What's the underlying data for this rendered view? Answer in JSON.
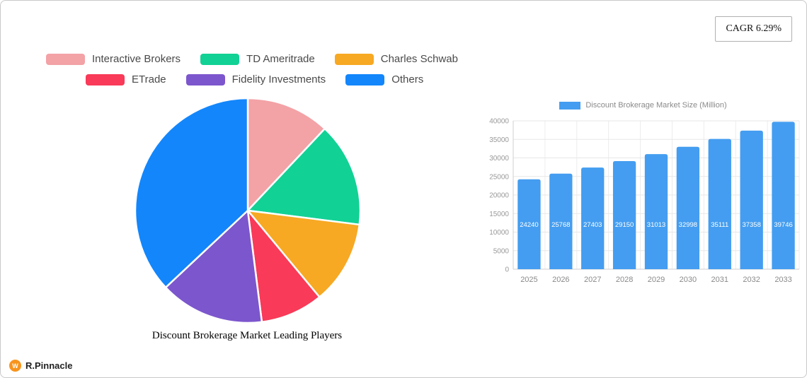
{
  "cagr_badge": "CAGR 6.29%",
  "brand": {
    "name": "R.Pinnacle",
    "logo_letter": "W"
  },
  "chart_data": [
    {
      "type": "pie",
      "title": "Discount Brokerage Market Leading Players",
      "legend_position": "top",
      "slices": [
        {
          "label": "Interactive Brokers",
          "value": 12,
          "color": "#f3a2a6"
        },
        {
          "label": "TD Ameritrade",
          "value": 15,
          "color": "#12d195"
        },
        {
          "label": "Charles Schwab",
          "value": 12,
          "color": "#f7a923"
        },
        {
          "label": "ETrade",
          "value": 9,
          "color": "#f93a58"
        },
        {
          "label": "Fidelity Investments",
          "value": 15,
          "color": "#7c56cd"
        },
        {
          "label": "Others",
          "value": 37,
          "color": "#1386fb"
        }
      ]
    },
    {
      "type": "bar",
      "legend": "Discount Brokerage Market Size (Million)",
      "categories": [
        "2025",
        "2026",
        "2027",
        "2028",
        "2029",
        "2030",
        "2031",
        "2032",
        "2033"
      ],
      "values": [
        24240,
        25768,
        27403,
        29150,
        31013,
        32998,
        35111,
        37358,
        39746
      ],
      "bar_color": "#449df0",
      "ylim": [
        0,
        40000
      ],
      "yticks": [
        0,
        5000,
        10000,
        15000,
        20000,
        25000,
        30000,
        35000,
        40000
      ],
      "grid": true,
      "legend_position": "top"
    }
  ]
}
